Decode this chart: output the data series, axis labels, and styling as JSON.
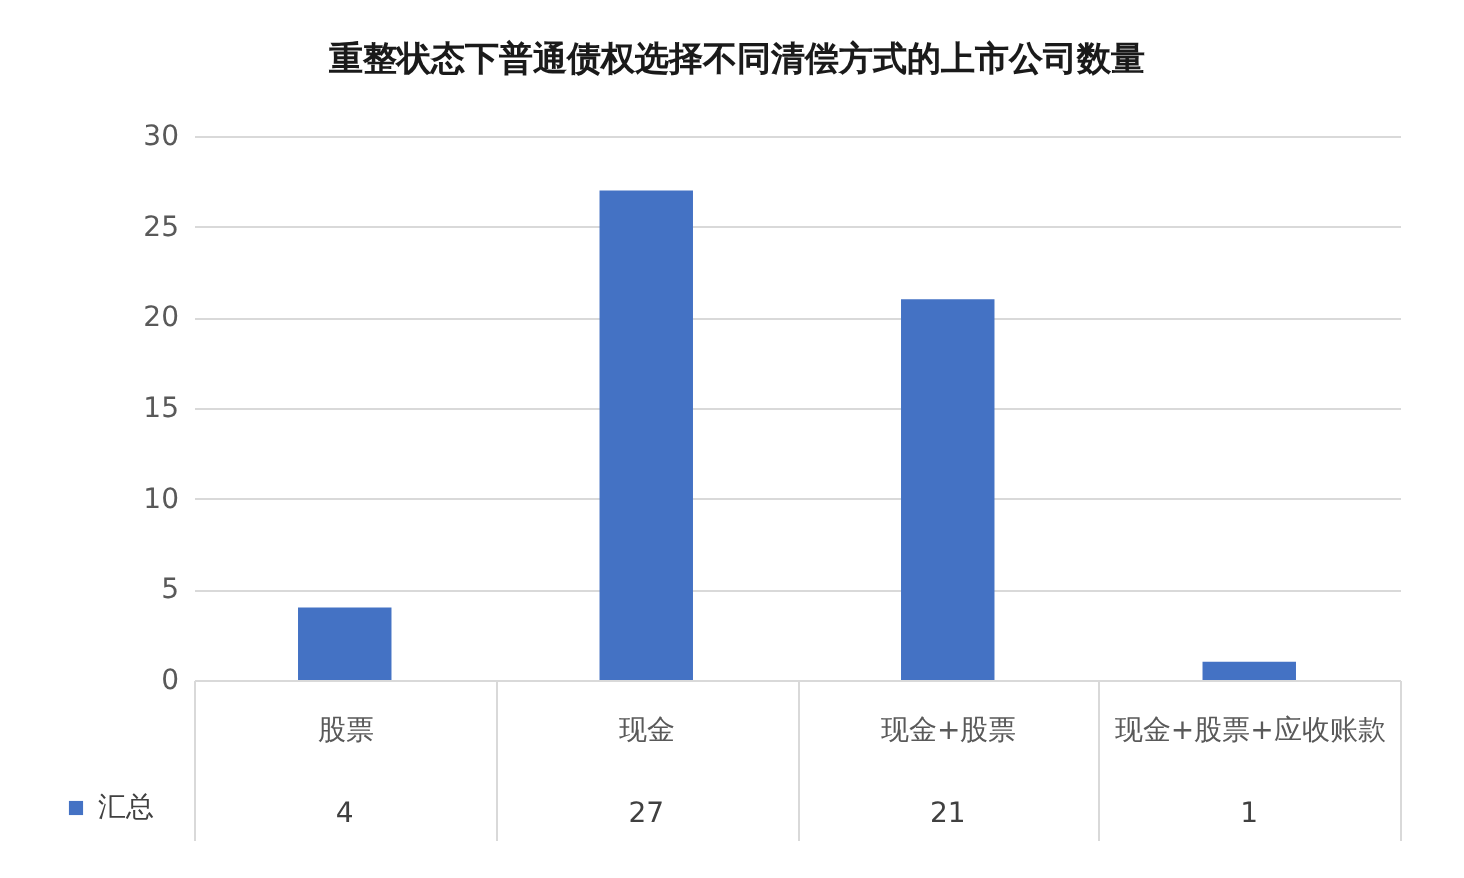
{
  "chart_data": {
    "type": "bar",
    "title": "重整状态下普通债权选择不同清偿方式的上市公司数量",
    "categories": [
      "股票",
      "现金",
      "现金+股票",
      "现金+股票+应收账款"
    ],
    "series": [
      {
        "name": "汇总",
        "color": "#4472c4",
        "values": [
          4,
          27,
          21,
          1
        ]
      }
    ],
    "ylim": [
      0,
      30
    ],
    "yticks": [
      0,
      5,
      10,
      15,
      20,
      25,
      30
    ],
    "grid": "y",
    "legend": "bottom left",
    "data_labels": true
  }
}
